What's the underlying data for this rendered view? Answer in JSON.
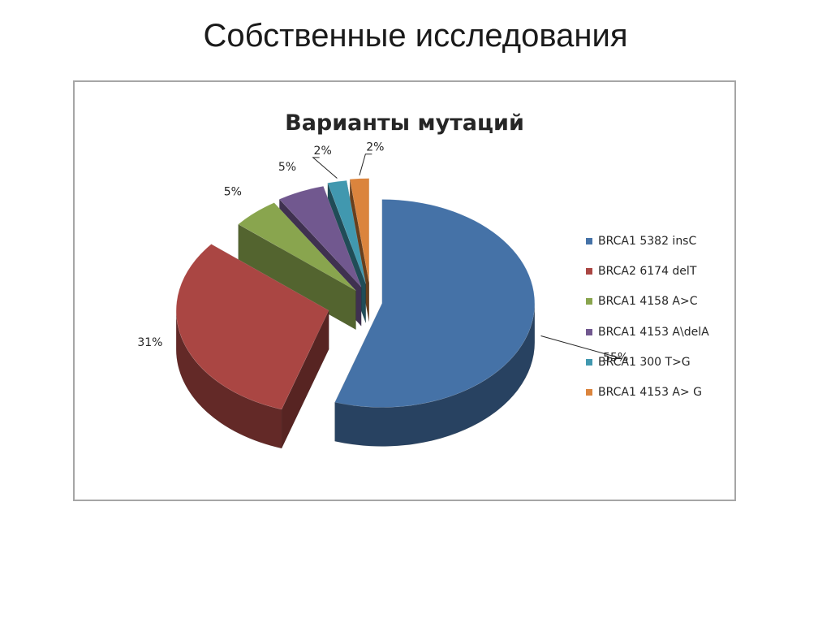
{
  "slide": {
    "title": "Собственные исследования"
  },
  "chart_data": {
    "type": "pie",
    "title": "Варианты мутаций",
    "legend_position": "right",
    "categories": [
      "BRCA1 5382 insC",
      "BRCA2 6174 delT",
      "BRCA1 4158 A>C",
      "BRCA1 4153 A\\delA",
      "BRCA1 300 T>G",
      "BRCA1 4153 A> G"
    ],
    "values": [
      55,
      31,
      5,
      5,
      2,
      2
    ],
    "data_labels": [
      "55%",
      "31%",
      "5%",
      "5%",
      "2%",
      "2%"
    ],
    "colors": [
      "#4572a7",
      "#aa4643",
      "#89a54e",
      "#71588f",
      "#4198af",
      "#db843d"
    ]
  }
}
